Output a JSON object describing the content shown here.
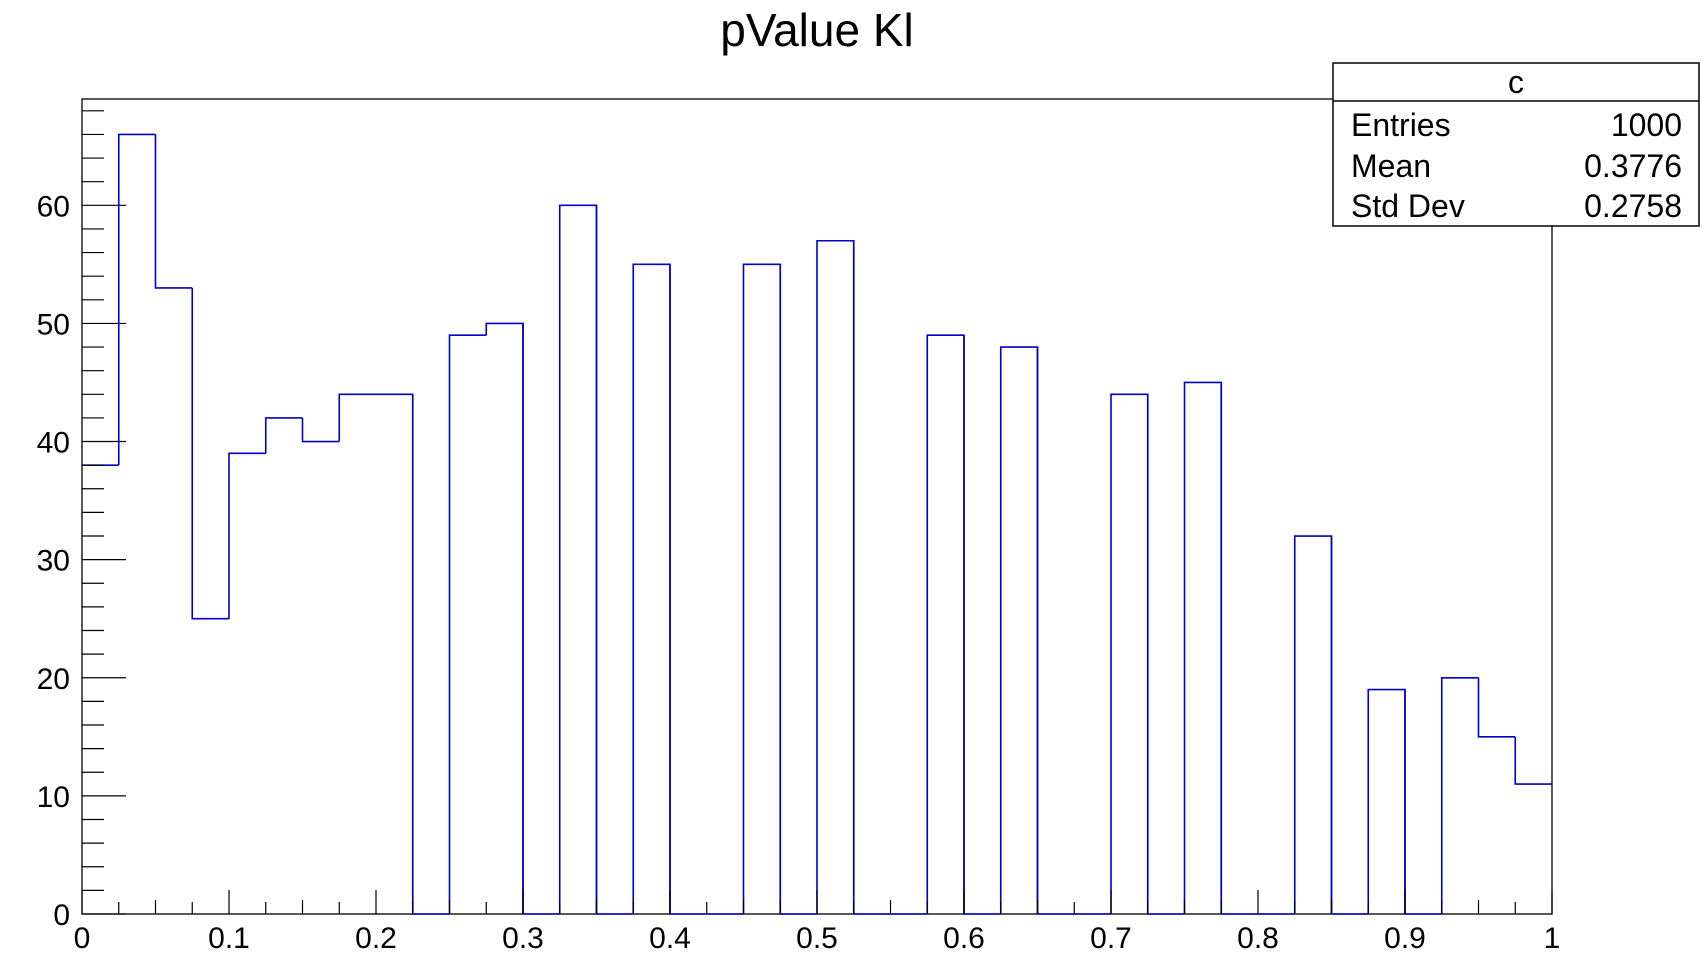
{
  "chart_data": {
    "type": "bar",
    "title": "pValue Kl",
    "xlabel": "",
    "ylabel": "",
    "xlim": [
      0,
      1
    ],
    "ylim": [
      0,
      69
    ],
    "bin_width": 0.025,
    "x_ticks": [
      "0",
      "0.1",
      "0.2",
      "0.3",
      "0.4",
      "0.5",
      "0.6",
      "0.7",
      "0.8",
      "0.9",
      "1"
    ],
    "y_ticks": [
      "0",
      "10",
      "20",
      "30",
      "40",
      "50",
      "60"
    ],
    "bins": [
      {
        "x0": 0.0,
        "x1": 0.025,
        "value": 38
      },
      {
        "x0": 0.025,
        "x1": 0.05,
        "value": 66
      },
      {
        "x0": 0.05,
        "x1": 0.075,
        "value": 53
      },
      {
        "x0": 0.075,
        "x1": 0.1,
        "value": 25
      },
      {
        "x0": 0.1,
        "x1": 0.125,
        "value": 39
      },
      {
        "x0": 0.125,
        "x1": 0.15,
        "value": 42
      },
      {
        "x0": 0.15,
        "x1": 0.175,
        "value": 40
      },
      {
        "x0": 0.175,
        "x1": 0.2,
        "value": 44
      },
      {
        "x0": 0.2,
        "x1": 0.225,
        "value": 44
      },
      {
        "x0": 0.225,
        "x1": 0.25,
        "value": 0
      },
      {
        "x0": 0.25,
        "x1": 0.275,
        "value": 49
      },
      {
        "x0": 0.275,
        "x1": 0.3,
        "value": 50
      },
      {
        "x0": 0.3,
        "x1": 0.325,
        "value": 0
      },
      {
        "x0": 0.325,
        "x1": 0.35,
        "value": 60
      },
      {
        "x0": 0.35,
        "x1": 0.375,
        "value": 0
      },
      {
        "x0": 0.375,
        "x1": 0.4,
        "value": 55
      },
      {
        "x0": 0.4,
        "x1": 0.425,
        "value": 0
      },
      {
        "x0": 0.425,
        "x1": 0.45,
        "value": 0
      },
      {
        "x0": 0.45,
        "x1": 0.475,
        "value": 55
      },
      {
        "x0": 0.475,
        "x1": 0.5,
        "value": 0
      },
      {
        "x0": 0.5,
        "x1": 0.525,
        "value": 57
      },
      {
        "x0": 0.525,
        "x1": 0.55,
        "value": 0
      },
      {
        "x0": 0.55,
        "x1": 0.575,
        "value": 0
      },
      {
        "x0": 0.575,
        "x1": 0.6,
        "value": 49
      },
      {
        "x0": 0.6,
        "x1": 0.625,
        "value": 0
      },
      {
        "x0": 0.625,
        "x1": 0.65,
        "value": 48
      },
      {
        "x0": 0.65,
        "x1": 0.675,
        "value": 0
      },
      {
        "x0": 0.675,
        "x1": 0.7,
        "value": 0
      },
      {
        "x0": 0.7,
        "x1": 0.725,
        "value": 44
      },
      {
        "x0": 0.725,
        "x1": 0.75,
        "value": 0
      },
      {
        "x0": 0.75,
        "x1": 0.775,
        "value": 45
      },
      {
        "x0": 0.775,
        "x1": 0.8,
        "value": 0
      },
      {
        "x0": 0.8,
        "x1": 0.825,
        "value": 0
      },
      {
        "x0": 0.825,
        "x1": 0.85,
        "value": 32
      },
      {
        "x0": 0.85,
        "x1": 0.875,
        "value": 0
      },
      {
        "x0": 0.875,
        "x1": 0.9,
        "value": 19
      },
      {
        "x0": 0.9,
        "x1": 0.925,
        "value": 0
      },
      {
        "x0": 0.925,
        "x1": 0.95,
        "value": 20
      },
      {
        "x0": 0.95,
        "x1": 0.975,
        "value": 15
      },
      {
        "x0": 0.975,
        "x1": 1.0,
        "value": 11
      }
    ],
    "line_color": "#0000cc",
    "grid": false,
    "stats_box": {
      "placement": "top-right",
      "name": "c",
      "rows": [
        {
          "label": "Entries",
          "value": "1000"
        },
        {
          "label": "Mean",
          "value": "0.3776"
        },
        {
          "label": "Std Dev",
          "value": "0.2758"
        }
      ]
    }
  }
}
